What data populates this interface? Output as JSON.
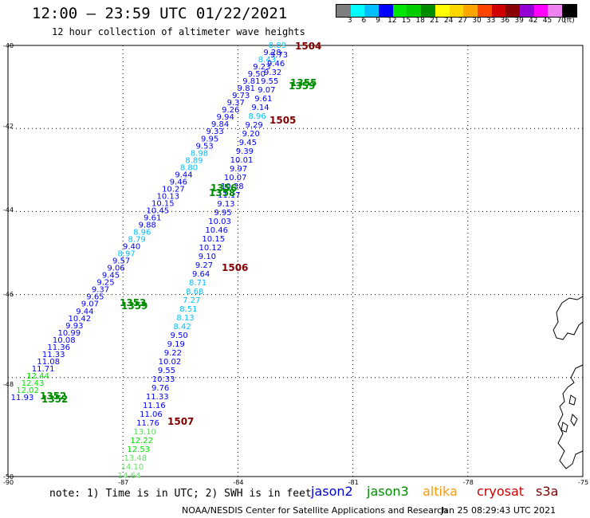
{
  "header": {
    "title": "12:00 – 23:59 UTC 01/22/2021",
    "subtitle": "12 hour collection of altimeter wave heights"
  },
  "colorbar": {
    "colors": [
      "#7f7f7f",
      "#00ffff",
      "#00bfff",
      "#0000ff",
      "#00e600",
      "#00cc00",
      "#008c00",
      "#ffff00",
      "#ffd700",
      "#ffa500",
      "#ff4500",
      "#d00000",
      "#8b0000",
      "#9400d3",
      "#ff00ff",
      "#ee82ee",
      "#000000"
    ],
    "labels": [
      "3",
      "6",
      "9",
      "12",
      "15",
      "18",
      "21",
      "24",
      "27",
      "30",
      "33",
      "36",
      "39",
      "42",
      "45",
      "70",
      "(ft)"
    ]
  },
  "axes": {
    "lat_labels": [
      "-40",
      "-42",
      "-44",
      "-46",
      "-48",
      "-50"
    ],
    "lon_labels": [
      "-90",
      "-87",
      "-84",
      "-81",
      "-78",
      "-75"
    ]
  },
  "tracks": {
    "a_values": [
      "8.89",
      "9.28",
      "8.43",
      "9.23",
      "9.50",
      "9.81",
      "9.81",
      "9.73",
      "9.37",
      "9.26",
      "9.94",
      "9.84",
      "9.33",
      "9.95",
      "9.53",
      "8.98",
      "8.89",
      "8.80",
      "9.44",
      "9.46",
      "10.27",
      "10.13",
      "10.15",
      "10.45",
      "9.61",
      "9.88",
      "8.96",
      "8.79",
      "9.40",
      "8.97",
      "9.57",
      "9.06",
      "9.45",
      "9.25",
      "9.37",
      "9.65",
      "9.07",
      "9.44",
      "10.42",
      "9.93",
      "10.99",
      "10.08",
      "11.36",
      "11.33",
      "11.08",
      "11.71",
      "12.44",
      "12.43",
      "12.02",
      "11.93"
    ],
    "b_values": [
      "9.73",
      "9.46",
      "9.32",
      "9.55",
      "9.07",
      "9.61",
      "9.14",
      "8.96",
      "9.29",
      "9.20",
      "9.45",
      "9.39",
      "10.01",
      "9.97",
      "10.07",
      "10.38",
      "11.17",
      "9.13",
      "9.95",
      "10.03",
      "10.46",
      "10.15",
      "10.12",
      "9.10",
      "9.27",
      "9.64",
      "8.71",
      "8.68",
      "7.27",
      "8.51",
      "8.13",
      "8.42",
      "9.50",
      "9.19",
      "9.22",
      "10.02",
      "9.55",
      "10.33",
      "9.76",
      "11.33",
      "11.16",
      "11.06",
      "11.76",
      "13.10",
      "12.22",
      "12.53",
      "13.48",
      "14.10",
      "14.64"
    ]
  },
  "time_labels": [
    {
      "text": "1504",
      "sat": "cryosat"
    },
    {
      "text": "1355",
      "sat": "jason3"
    },
    {
      "text": "1359",
      "sat": "jason3"
    },
    {
      "text": "1505",
      "sat": "cryosat"
    },
    {
      "text": "1356",
      "sat": "jason3"
    },
    {
      "text": "1358",
      "sat": "jason3"
    },
    {
      "text": "1506",
      "sat": "cryosat"
    },
    {
      "text": "1353",
      "sat": "jason3"
    },
    {
      "text": "1359",
      "sat": "jason3"
    },
    {
      "text": "1352",
      "sat": "jason3"
    },
    {
      "text": "1352",
      "sat": "jason3"
    },
    {
      "text": "1507",
      "sat": "cryosat"
    }
  ],
  "footer": {
    "note": "note: 1) Time is in UTC; 2) SWH is in feet",
    "sat_jason2": "jason2",
    "sat_jason3": "jason3",
    "sat_altika": "altika",
    "sat_cryosat": "cryosat",
    "sat_s3a": "s3a",
    "credit": "NOAA/NESDIS Center for Satellite Applications and Research",
    "timestamp": "Jan 25 08:29:43 UTC 2021"
  },
  "colors": {
    "jason2": "#0000cc",
    "jason3": "#008c00",
    "altika": "#ff9900",
    "cryosat": "#cc0000",
    "s3a": "#800000",
    "time_dark": "#800000"
  }
}
